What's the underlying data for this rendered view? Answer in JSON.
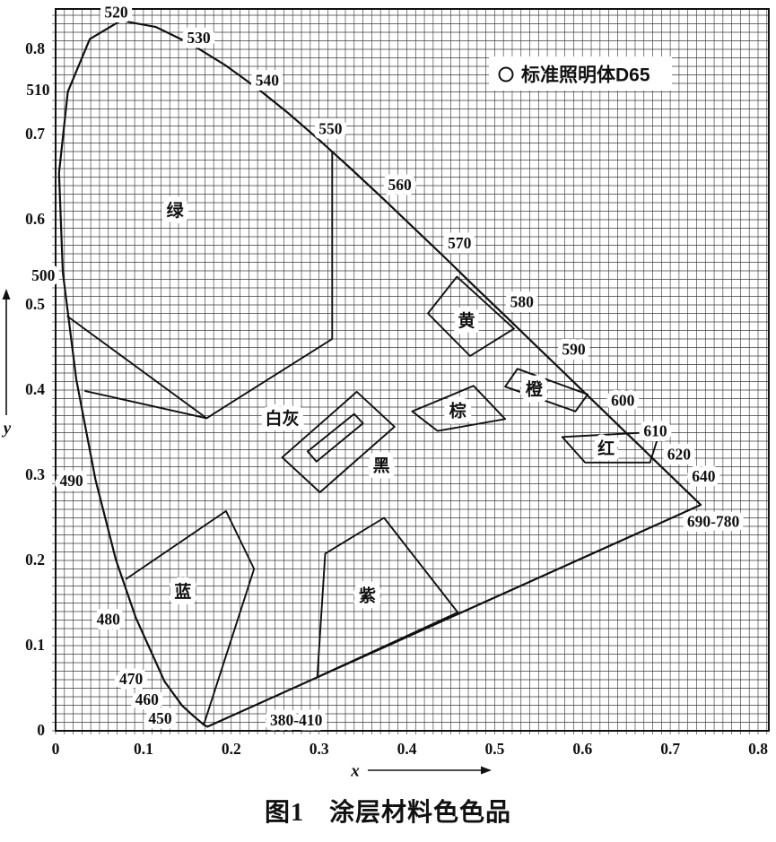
{
  "figure": {
    "label": "图1",
    "title": "涂层材料色色品"
  },
  "legend": {
    "marker": "open-circle",
    "label": "标准照明体D65"
  },
  "colors": {
    "ink": "#111111",
    "grid": "#3a3a3a",
    "background": "#ffffff"
  },
  "axes": {
    "x": {
      "label": "x",
      "ticks": [
        "0",
        "0.1",
        "0.2",
        "0.3",
        "0.4",
        "0.5",
        "0.6",
        "0.7",
        "0.8"
      ]
    },
    "y": {
      "label": "y",
      "ticks": [
        "0",
        "0.1",
        "0.2",
        "0.3",
        "0.4",
        "0.5",
        "0.6",
        "0.7",
        "0.8"
      ]
    }
  },
  "chart_data": {
    "type": "line",
    "title": "CIE 1931 chromaticity diagram of coating material colors",
    "xlabel": "x",
    "ylabel": "y",
    "xlim": [
      0,
      0.812
    ],
    "ylim": [
      0,
      0.847
    ],
    "grid": {
      "on": true,
      "step": 0.01
    },
    "spectral_locus": {
      "closed_by_purple_line": true,
      "points": [
        [
          0.173,
          0.0048
        ],
        [
          0.1689,
          0.0069
        ],
        [
          0.1644,
          0.0109
        ],
        [
          0.1566,
          0.0177
        ],
        [
          0.144,
          0.0297
        ],
        [
          0.1241,
          0.0578
        ],
        [
          0.0913,
          0.1327
        ],
        [
          0.0687,
          0.2007
        ],
        [
          0.0454,
          0.295
        ],
        [
          0.0235,
          0.4127
        ],
        [
          0.0082,
          0.5384
        ],
        [
          0.0039,
          0.6548
        ],
        [
          0.0139,
          0.7502
        ],
        [
          0.0389,
          0.812
        ],
        [
          0.0743,
          0.8338
        ],
        [
          0.1142,
          0.8262
        ],
        [
          0.1547,
          0.8059
        ],
        [
          0.1929,
          0.7816
        ],
        [
          0.2296,
          0.7543
        ],
        [
          0.2658,
          0.7243
        ],
        [
          0.3016,
          0.6923
        ],
        [
          0.3373,
          0.6589
        ],
        [
          0.3731,
          0.6245
        ],
        [
          0.4087,
          0.5896
        ],
        [
          0.4441,
          0.5547
        ],
        [
          0.4784,
          0.5203
        ],
        [
          0.5125,
          0.4866
        ],
        [
          0.5448,
          0.4544
        ],
        [
          0.5752,
          0.4242
        ],
        [
          0.6029,
          0.3965
        ],
        [
          0.627,
          0.3725
        ],
        [
          0.6482,
          0.3514
        ],
        [
          0.6658,
          0.334
        ],
        [
          0.6801,
          0.3197
        ],
        [
          0.6915,
          0.3083
        ],
        [
          0.7006,
          0.2993
        ],
        [
          0.7079,
          0.292
        ],
        [
          0.719,
          0.2809
        ],
        [
          0.726,
          0.274
        ],
        [
          0.7347,
          0.2653
        ]
      ],
      "wavelength_labels": [
        {
          "text": "380-410",
          "at": [
            0.173,
            0.0048
          ],
          "label_xy": [
            0.274,
            0.013
          ]
        },
        {
          "text": "450",
          "at": [
            0.1566,
            0.0177
          ],
          "label_xy": [
            0.119,
            0.015
          ]
        },
        {
          "text": "460",
          "at": [
            0.144,
            0.0297
          ],
          "label_xy": [
            0.104,
            0.037
          ]
        },
        {
          "text": "470",
          "at": [
            0.1241,
            0.0578
          ],
          "label_xy": [
            0.086,
            0.061
          ]
        },
        {
          "text": "480",
          "at": [
            0.0913,
            0.1327
          ],
          "label_xy": [
            0.06,
            0.131
          ]
        },
        {
          "text": "490",
          "at": [
            0.0454,
            0.295
          ],
          "label_xy": [
            0.018,
            0.294
          ]
        },
        {
          "text": "500",
          "at": [
            0.0082,
            0.5384
          ],
          "label_xy": [
            -0.014,
            0.535
          ]
        },
        {
          "text": "510",
          "at": [
            0.0139,
            0.7502
          ],
          "label_xy": [
            -0.02,
            0.753
          ]
        },
        {
          "text": "520",
          "at": [
            0.0743,
            0.8338
          ],
          "label_xy": [
            0.069,
            0.844
          ]
        },
        {
          "text": "530",
          "at": [
            0.1547,
            0.8059
          ],
          "label_xy": [
            0.163,
            0.814
          ]
        },
        {
          "text": "540",
          "at": [
            0.2296,
            0.7543
          ],
          "label_xy": [
            0.241,
            0.764
          ]
        },
        {
          "text": "550",
          "at": [
            0.3016,
            0.6923
          ],
          "label_xy": [
            0.313,
            0.707
          ]
        },
        {
          "text": "560",
          "at": [
            0.3731,
            0.6245
          ],
          "label_xy": [
            0.392,
            0.641
          ]
        },
        {
          "text": "570",
          "at": [
            0.4441,
            0.5547
          ],
          "label_xy": [
            0.46,
            0.573
          ]
        },
        {
          "text": "580",
          "at": [
            0.5125,
            0.4866
          ],
          "label_xy": [
            0.531,
            0.504
          ]
        },
        {
          "text": "590",
          "at": [
            0.5752,
            0.4242
          ],
          "label_xy": [
            0.59,
            0.448
          ]
        },
        {
          "text": "600",
          "at": [
            0.627,
            0.3725
          ],
          "label_xy": [
            0.646,
            0.388
          ]
        },
        {
          "text": "610",
          "at": [
            0.6658,
            0.334
          ],
          "label_xy": [
            0.683,
            0.352
          ]
        },
        {
          "text": "620",
          "at": [
            0.6915,
            0.3083
          ],
          "label_xy": [
            0.71,
            0.325
          ]
        },
        {
          "text": "640",
          "at": [
            0.719,
            0.2809
          ],
          "label_xy": [
            0.738,
            0.299
          ]
        },
        {
          "text": "690-780",
          "at": [
            0.7347,
            0.2653
          ],
          "label_xy": [
            0.749,
            0.246
          ]
        }
      ]
    },
    "regions": [
      {
        "key": "green",
        "label": "绿",
        "label_xy": [
          0.136,
          0.611
        ],
        "closed": false,
        "points": [
          [
            0.315,
            0.681
          ],
          [
            0.315,
            0.46
          ],
          [
            0.172,
            0.367
          ],
          [
            0.013,
            0.487
          ]
        ]
      },
      {
        "key": "yellow",
        "label": "黄",
        "label_xy": [
          0.468,
          0.482
        ],
        "closed": true,
        "points": [
          [
            0.424,
            0.49
          ],
          [
            0.457,
            0.533
          ],
          [
            0.522,
            0.472
          ],
          [
            0.472,
            0.44
          ]
        ]
      },
      {
        "key": "orange",
        "label": "橙",
        "label_xy": [
          0.545,
          0.401
        ],
        "closed": true,
        "points": [
          [
            0.512,
            0.404
          ],
          [
            0.526,
            0.425
          ],
          [
            0.606,
            0.395
          ],
          [
            0.592,
            0.375
          ]
        ]
      },
      {
        "key": "brown",
        "label": "棕",
        "label_xy": [
          0.458,
          0.376
        ],
        "closed": true,
        "points": [
          [
            0.406,
            0.375
          ],
          [
            0.476,
            0.405
          ],
          [
            0.512,
            0.366
          ],
          [
            0.435,
            0.352
          ]
        ]
      },
      {
        "key": "red",
        "label": "红",
        "label_xy": [
          0.627,
          0.332
        ],
        "closed": true,
        "points": [
          [
            0.577,
            0.345
          ],
          [
            0.688,
            0.351
          ],
          [
            0.677,
            0.315
          ],
          [
            0.603,
            0.315
          ]
        ]
      },
      {
        "key": "gray-outer",
        "label": "",
        "label_xy": null,
        "closed": true,
        "points": [
          [
            0.343,
            0.398
          ],
          [
            0.386,
            0.357
          ],
          [
            0.301,
            0.28
          ],
          [
            0.258,
            0.321
          ]
        ]
      },
      {
        "key": "white-inner",
        "label": "",
        "label_xy": null,
        "closed": true,
        "points": [
          [
            0.34,
            0.372
          ],
          [
            0.35,
            0.361
          ],
          [
            0.297,
            0.316
          ],
          [
            0.287,
            0.328
          ]
        ]
      },
      {
        "key": "blue",
        "label": "蓝",
        "label_xy": [
          0.145,
          0.164
        ],
        "closed": false,
        "points": [
          [
            0.08,
            0.178
          ],
          [
            0.194,
            0.258
          ],
          [
            0.226,
            0.19
          ],
          [
            0.169,
            0.008
          ]
        ]
      },
      {
        "key": "purple",
        "label": "紫",
        "label_xy": [
          0.355,
          0.159
        ],
        "closed": true,
        "points": [
          [
            0.374,
            0.25
          ],
          [
            0.458,
            0.139
          ],
          [
            0.298,
            0.063
          ],
          [
            0.307,
            0.208
          ]
        ]
      }
    ],
    "boundary_lines": [
      {
        "key": "whitegray-left",
        "points": [
          [
            0.033,
            0.399
          ],
          [
            0.172,
            0.367
          ]
        ]
      }
    ],
    "floating_labels": [
      {
        "text": "白灰",
        "xy": [
          0.258,
          0.367
        ]
      },
      {
        "text": "黑",
        "xy": [
          0.371,
          0.312
        ]
      }
    ]
  }
}
